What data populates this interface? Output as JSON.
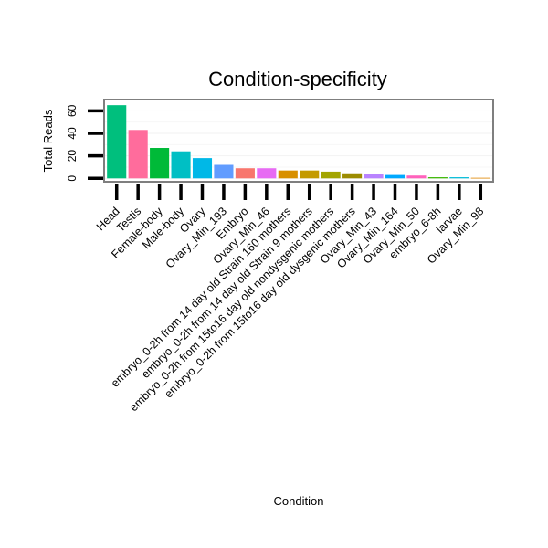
{
  "chart_data": {
    "type": "bar",
    "title": "Condition-specificity",
    "xlabel": "Condition",
    "ylabel": "Total Reads",
    "ylim": [
      -3,
      70
    ],
    "yticks": [
      0,
      20,
      40,
      60
    ],
    "grid": true,
    "legend": "none",
    "categories": [
      "Head",
      "Testis",
      "Female-body",
      "Male-body",
      "Ovary",
      "Ovary_Min_193",
      "Embryo",
      "Ovary_Min_46",
      "embryo_0-2h from 14 day old Strain 160 mothers",
      "embryo_0-2h from 14 day old Strain 9 mothers",
      "embryo_0-2h from 15to16 day old nondysgenic mothers",
      "embryo_0-2h from 15to16 day old dysgenic mothers",
      "Ovary_Min_43",
      "Ovary_Min_164",
      "Ovary_Min_50",
      "embryo_6-8h",
      "larvae",
      "Ovary_Min_98"
    ],
    "values": [
      65,
      43,
      27,
      24,
      18,
      12,
      9,
      9,
      7,
      7,
      6,
      4.5,
      4,
      3,
      2.5,
      1,
      1,
      0.5
    ],
    "colors": [
      "#00BF7D",
      "#FF6C9C",
      "#00BA38",
      "#00BFC4",
      "#00B8E7",
      "#619CFF",
      "#F8766D",
      "#E76BF3",
      "#D89000",
      "#C49A00",
      "#A3A500",
      "#9C8C00",
      "#B983FF",
      "#00A9FF",
      "#FF62BC",
      "#39B600",
      "#00BCD8",
      "#E58700"
    ]
  }
}
